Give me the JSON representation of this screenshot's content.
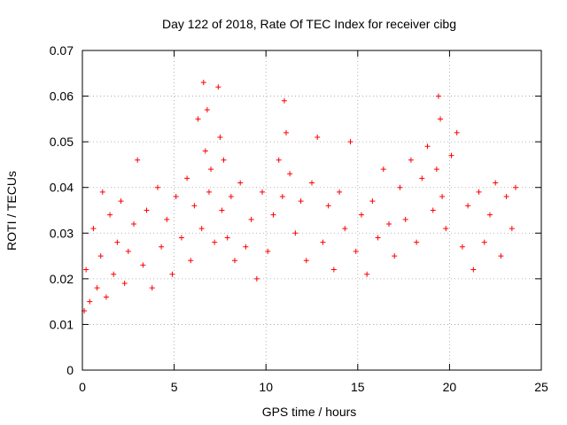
{
  "chart_data": {
    "type": "scatter",
    "title": "Day 122 of 2018, Rate Of TEC Index for receiver cibg",
    "xlabel": "GPS time / hours",
    "ylabel": "ROTI / TECUs",
    "xlim": [
      0,
      25
    ],
    "ylim": [
      0,
      0.07
    ],
    "xticks": [
      "0",
      "5",
      "10",
      "15",
      "20",
      "25"
    ],
    "yticks": [
      "0",
      "0.01",
      "0.02",
      "0.03",
      "0.04",
      "0.05",
      "0.06",
      "0.07"
    ],
    "grid": true,
    "marker": "+",
    "series": [
      {
        "name": "ROTI",
        "color": "#ff0000",
        "x": [
          0.1,
          0.2,
          0.4,
          0.6,
          0.8,
          1.0,
          1.1,
          1.3,
          1.5,
          1.7,
          1.9,
          2.1,
          2.3,
          2.5,
          2.8,
          3.0,
          3.3,
          3.5,
          3.8,
          4.1,
          4.3,
          4.6,
          4.9,
          5.1,
          5.4,
          5.7,
          5.9,
          6.1,
          6.3,
          6.5,
          6.6,
          6.7,
          6.8,
          6.9,
          7.0,
          7.2,
          7.4,
          7.5,
          7.6,
          7.7,
          7.9,
          8.1,
          8.3,
          8.6,
          8.9,
          9.2,
          9.5,
          9.8,
          10.1,
          10.4,
          10.7,
          10.9,
          11.0,
          11.1,
          11.3,
          11.6,
          11.9,
          12.2,
          12.5,
          12.8,
          13.1,
          13.4,
          13.7,
          14.0,
          14.3,
          14.6,
          14.9,
          15.2,
          15.5,
          15.8,
          16.1,
          16.4,
          16.7,
          17.0,
          17.3,
          17.6,
          17.9,
          18.2,
          18.5,
          18.8,
          19.1,
          19.3,
          19.4,
          19.5,
          19.6,
          19.8,
          20.1,
          20.4,
          20.7,
          21.0,
          21.3,
          21.6,
          21.9,
          22.2,
          22.5,
          22.8,
          23.1,
          23.4,
          23.6
        ],
        "y": [
          0.013,
          0.022,
          0.015,
          0.031,
          0.018,
          0.025,
          0.039,
          0.016,
          0.034,
          0.021,
          0.028,
          0.037,
          0.019,
          0.026,
          0.032,
          0.046,
          0.023,
          0.035,
          0.018,
          0.04,
          0.027,
          0.033,
          0.021,
          0.038,
          0.029,
          0.042,
          0.024,
          0.036,
          0.055,
          0.031,
          0.063,
          0.048,
          0.057,
          0.039,
          0.044,
          0.028,
          0.062,
          0.051,
          0.035,
          0.046,
          0.029,
          0.038,
          0.024,
          0.041,
          0.027,
          0.033,
          0.02,
          0.039,
          0.026,
          0.034,
          0.046,
          0.038,
          0.059,
          0.052,
          0.043,
          0.03,
          0.037,
          0.024,
          0.041,
          0.051,
          0.028,
          0.036,
          0.022,
          0.039,
          0.031,
          0.05,
          0.026,
          0.034,
          0.021,
          0.037,
          0.029,
          0.044,
          0.032,
          0.025,
          0.04,
          0.033,
          0.046,
          0.028,
          0.042,
          0.049,
          0.035,
          0.044,
          0.06,
          0.055,
          0.038,
          0.031,
          0.047,
          0.052,
          0.027,
          0.036,
          0.022,
          0.039,
          0.028,
          0.034,
          0.041,
          0.025,
          0.038,
          0.031,
          0.04
        ]
      }
    ]
  }
}
